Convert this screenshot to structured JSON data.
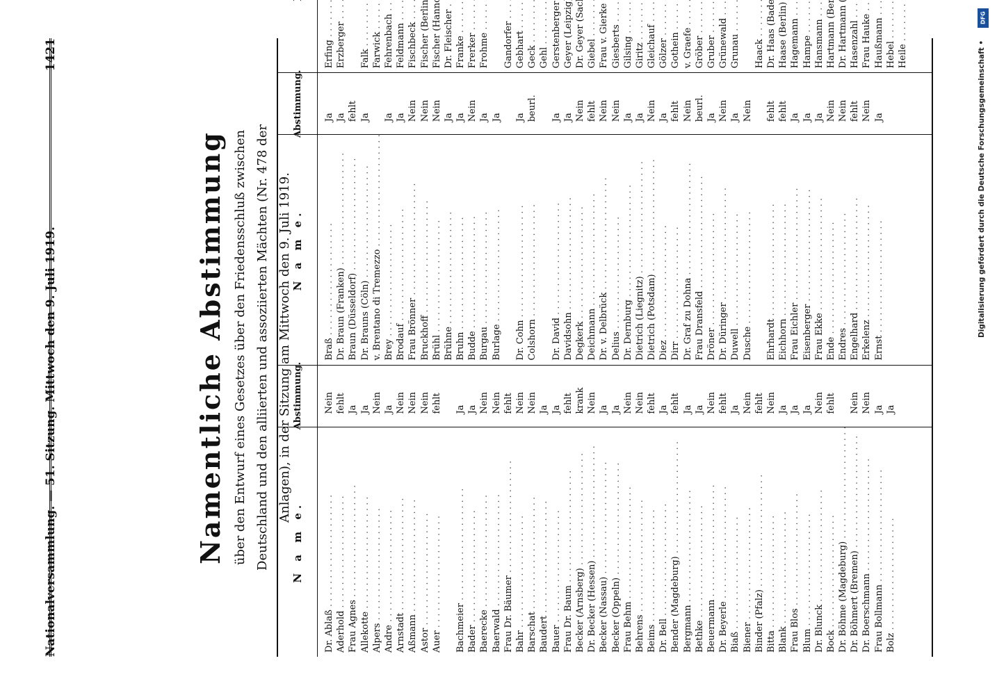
{
  "header": {
    "left": "Nationalversammlung. — 51. Sitzung. Mittwoch den 9. Juli 1919.",
    "page_number": "1421"
  },
  "title": "Namentliche Abstimmung",
  "subtitle": "über den Entwurf eines Gesetzes über den Friedensschluß zwischen Deutschland und den alliierten und assoziierten Mächten (Nr. 478 der Anlagen), in der Sitzung am Mittwoch den 9. Juli 1919.",
  "table_header": {
    "name": "N a m e.",
    "vote": "Abstimmung."
  },
  "columns": [
    {
      "rows": [
        {
          "name": "Dr. Ablaß",
          "vote": "Nein"
        },
        {
          "name": "Aderhold",
          "vote": "fehlt"
        },
        {
          "name": "Frau Agnes",
          "vote": "Ja"
        },
        {
          "name": "Allekotte",
          "vote": "Ja"
        },
        {
          "name": "Alpers",
          "vote": "Nein"
        },
        {
          "name": "Andre",
          "vote": "Ja"
        },
        {
          "name": "Arnstadt",
          "vote": "Nein"
        },
        {
          "name": "Aßmann",
          "vote": "Nein"
        },
        {
          "name": "Astor",
          "vote": "Nein"
        },
        {
          "name": "Auer",
          "vote": "fehlt"
        },
        {
          "name": "",
          "vote": ""
        },
        {
          "name": "Bachmeier",
          "vote": "Ja"
        },
        {
          "name": "Bader",
          "vote": "Ja"
        },
        {
          "name": "Baerecke",
          "vote": "Nein"
        },
        {
          "name": "Baerwald",
          "vote": "Nein"
        },
        {
          "name": "Frau Dr. Bäumer",
          "vote": "fehlt"
        },
        {
          "name": "Bahr",
          "vote": "Nein"
        },
        {
          "name": "Barschat",
          "vote": "Nein"
        },
        {
          "name": "Baudert",
          "vote": "Ja"
        },
        {
          "name": "Bauer",
          "vote": "Ja"
        },
        {
          "name": "Frau Dr. Baum",
          "vote": "fehlt"
        },
        {
          "name": "Becker (Arnsberg)",
          "vote": "krank"
        },
        {
          "name": "Dr. Becker (Hessen)",
          "vote": "Nein"
        },
        {
          "name": "Becker (Nassau)",
          "vote": "Ja"
        },
        {
          "name": "Becker (Oppeln)",
          "vote": "Ja"
        },
        {
          "name": "Frau Behm",
          "vote": "Nein"
        },
        {
          "name": "Behrens",
          "vote": "Nein"
        },
        {
          "name": "Beims",
          "vote": "fehlt"
        },
        {
          "name": "Dr. Bell",
          "vote": "Ja"
        },
        {
          "name": "Bender (Magdeburg)",
          "vote": "fehlt"
        },
        {
          "name": "Bergmann",
          "vote": "Ja"
        },
        {
          "name": "Bethke",
          "vote": "Ja"
        },
        {
          "name": "Beuermann",
          "vote": "Nein"
        },
        {
          "name": "Dr. Beyerle",
          "vote": "fehlt"
        },
        {
          "name": "Biaß",
          "vote": "Ja"
        },
        {
          "name": "Biener",
          "vote": "Nein"
        },
        {
          "name": "Binder (Pfalz)",
          "vote": "fehlt"
        },
        {
          "name": "Bitta",
          "vote": "Nein"
        },
        {
          "name": "Blank",
          "vote": "Ja"
        },
        {
          "name": "Frau Blos",
          "vote": "Ja"
        },
        {
          "name": "Blum",
          "vote": "Ja"
        },
        {
          "name": "Dr. Blunck",
          "vote": "Nein"
        },
        {
          "name": "Bock",
          "vote": "fehlt"
        },
        {
          "name": "Dr. Böhme (Magdeburg)",
          "vote": ""
        },
        {
          "name": "Dr. Böhmert (Bremen)",
          "vote": "Nein"
        },
        {
          "name": "Dr. Boerschmann",
          "vote": "Nein"
        },
        {
          "name": "Frau Bollmann",
          "vote": "Ja"
        },
        {
          "name": "Bolz",
          "vote": "Ja"
        }
      ]
    },
    {
      "rows": [
        {
          "name": "Braß",
          "vote": "Ja"
        },
        {
          "name": "Dr. Braun (Franken)",
          "vote": "Ja"
        },
        {
          "name": "Braun (Düsseldorf)",
          "vote": "fehlt"
        },
        {
          "name": "Dr. Brauns (Cöln)",
          "vote": "Ja"
        },
        {
          "name": "v. Brentano di Tremezzo",
          "vote": ""
        },
        {
          "name": "Brey",
          "vote": "Ja"
        },
        {
          "name": "Brodauf",
          "vote": "Ja"
        },
        {
          "name": "Frau Brönner",
          "vote": "Nein"
        },
        {
          "name": "Bruckhoff",
          "vote": "Nein"
        },
        {
          "name": "Brühl",
          "vote": "Nein"
        },
        {
          "name": "Brühne",
          "vote": "Ja"
        },
        {
          "name": "Bruhn",
          "vote": "Ja"
        },
        {
          "name": "Budde",
          "vote": "Nein"
        },
        {
          "name": "Burgau",
          "vote": "Ja"
        },
        {
          "name": "Burlage",
          "vote": "Ja"
        },
        {
          "name": "",
          "vote": ""
        },
        {
          "name": "Dr. Cohn",
          "vote": "Ja"
        },
        {
          "name": "Colshorn",
          "vote": "beurl."
        },
        {
          "name": "",
          "vote": ""
        },
        {
          "name": "Dr. David",
          "vote": "Ja"
        },
        {
          "name": "Davidsohn",
          "vote": "Ja"
        },
        {
          "name": "Degkerk",
          "vote": "Nein"
        },
        {
          "name": "Deichmann",
          "vote": "fehlt"
        },
        {
          "name": "Dr. v. Delbrück",
          "vote": "Nein"
        },
        {
          "name": "Delius",
          "vote": "Nein"
        },
        {
          "name": "Dr. Dernburg",
          "vote": "Ja"
        },
        {
          "name": "Dietrich (Liegnitz)",
          "vote": "Ja"
        },
        {
          "name": "Dietrich (Potsdam)",
          "vote": "Nein"
        },
        {
          "name": "Diez",
          "vote": "Ja"
        },
        {
          "name": "Dirr",
          "vote": "fehlt"
        },
        {
          "name": "Dr. Graf zu Dohna",
          "vote": "Nein"
        },
        {
          "name": "Frau Dransfeld",
          "vote": "beurl."
        },
        {
          "name": "Dröner",
          "vote": "Ja"
        },
        {
          "name": "Dr. Düringer",
          "vote": "Nein"
        },
        {
          "name": "Duwell",
          "vote": "Ja"
        },
        {
          "name": "Dusche",
          "vote": "Nein"
        },
        {
          "name": "",
          "vote": ""
        },
        {
          "name": "Ehrhardt",
          "vote": "fehlt"
        },
        {
          "name": "Eichhorn",
          "vote": "fehlt"
        },
        {
          "name": "Frau Eichler",
          "vote": "Ja"
        },
        {
          "name": "Eisenberger",
          "vote": "Ja"
        },
        {
          "name": "Frau Ekke",
          "vote": "Ja"
        },
        {
          "name": "Ende",
          "vote": "Nein"
        },
        {
          "name": "Endres",
          "vote": "Nein"
        },
        {
          "name": "Engelhard",
          "vote": "fehlt"
        },
        {
          "name": "Erkelenz",
          "vote": "Nein"
        },
        {
          "name": "Ernst",
          "vote": "Ja"
        }
      ]
    },
    {
      "rows": [
        {
          "name": "Erfing",
          "vote": "Ja"
        },
        {
          "name": "Erzberger",
          "vote": "Ja"
        },
        {
          "name": "",
          "vote": ""
        },
        {
          "name": "Falk",
          "vote": "Nein"
        },
        {
          "name": "Farwick",
          "vote": "Ja"
        },
        {
          "name": "Fehrenbach",
          "vote": "Ja"
        },
        {
          "name": "Feldmann",
          "vote": "Ja"
        },
        {
          "name": "Fischbeck",
          "vote": "fehlt"
        },
        {
          "name": "Fischer (Berlin)",
          "vote": "Ja"
        },
        {
          "name": "Fischer (Hannover)",
          "vote": "Ja"
        },
        {
          "name": "Dr. Fleischer",
          "vote": "fehlt"
        },
        {
          "name": "Franke",
          "vote": "Nein"
        },
        {
          "name": "Frerker",
          "vote": "Ja"
        },
        {
          "name": "Frohme",
          "vote": "Ja"
        },
        {
          "name": "",
          "vote": ""
        },
        {
          "name": "Gandorfer",
          "vote": "Nein"
        },
        {
          "name": "Gebhart",
          "vote": "fehlt"
        },
        {
          "name": "Geck",
          "vote": "krank"
        },
        {
          "name": "Gehl",
          "vote": "Ja"
        },
        {
          "name": "Gerstenberger",
          "vote": "Ja"
        },
        {
          "name": "Geyer (Leipzig)",
          "vote": "fehlt"
        },
        {
          "name": "Dr. Geyer (Sachsen)",
          "vote": "fehlt"
        },
        {
          "name": "Giebel",
          "vote": "Ja"
        },
        {
          "name": "Frau v. Gierke",
          "vote": "Nein"
        },
        {
          "name": "Giesberts",
          "vote": "Ja"
        },
        {
          "name": "Gilsing",
          "vote": "Ja"
        },
        {
          "name": "Giritz",
          "vote": "fehlt"
        },
        {
          "name": "Gleichauf",
          "vote": "fehlt"
        },
        {
          "name": "Gölzer",
          "vote": "Ja"
        },
        {
          "name": "Gothein",
          "vote": "Nein"
        },
        {
          "name": "v. Graefe",
          "vote": "Nein"
        },
        {
          "name": "Gröber",
          "vote": "Ja"
        },
        {
          "name": "Gruber",
          "vote": "Ja"
        },
        {
          "name": "Grünewald",
          "vote": "fehlt"
        },
        {
          "name": "Grunau",
          "vote": "fehlt"
        },
        {
          "name": "",
          "vote": ""
        },
        {
          "name": "Haack",
          "vote": "fehlt"
        },
        {
          "name": "Dr. Haas (Baden)",
          "vote": "fehlt"
        },
        {
          "name": "Haase (Berlin)",
          "vote": "Ja"
        },
        {
          "name": "Hagemann",
          "vote": "Ja"
        },
        {
          "name": "Hampe",
          "vote": "Nein"
        },
        {
          "name": "Hansmann",
          "vote": "Ja"
        },
        {
          "name": "Hartmann (Berlin)",
          "vote": "Nein"
        },
        {
          "name": "Dr. Hartmann (Oppeln)",
          "vote": ""
        },
        {
          "name": "Hasenzahl",
          "vote": "Nein"
        },
        {
          "name": "Frau Hauke",
          "vote": "Ja"
        },
        {
          "name": "Haußmann",
          "vote": "Nein"
        },
        {
          "name": "Hebel",
          "vote": "Ja"
        },
        {
          "name": "Heile",
          "vote": "Nein"
        }
      ]
    }
  ],
  "side_note": {
    "badge": "DFG",
    "text": "Digitalisierung gefördert durch die Deutsche Forschungsgemeinschaft •"
  }
}
